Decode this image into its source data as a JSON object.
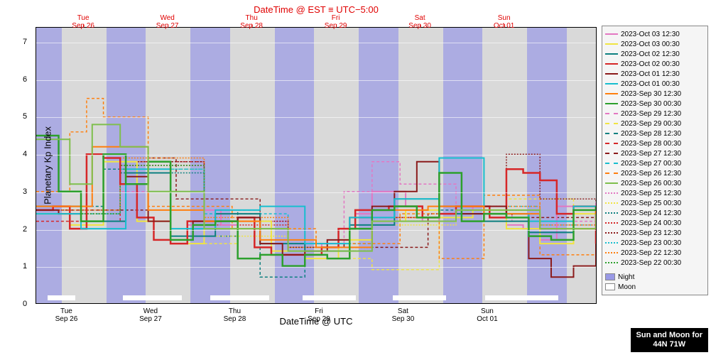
{
  "chart": {
    "type": "line-step",
    "top_title": "DateTime @ EST ≡ UTC−5:00",
    "bottom_title": "DateTime @ UTC",
    "y_label": "Planetary Kp Index",
    "ylim": [
      0,
      7.4
    ],
    "yticks": [
      0,
      1,
      2,
      3,
      4,
      5,
      6,
      7
    ],
    "plot_bg": "#d9d9d9",
    "night_color": "#9999e6",
    "moon_color": "#ffffff",
    "top_axis_color": "#e00000",
    "grid_color": "#ffffff",
    "top_ticks": [
      {
        "pos": 0.085,
        "label1": "Tue",
        "label2": "Sep 26"
      },
      {
        "pos": 0.235,
        "label1": "Wed",
        "label2": "Sep 27"
      },
      {
        "pos": 0.385,
        "label1": "Thu",
        "label2": "Sep 28"
      },
      {
        "pos": 0.535,
        "label1": "Fri",
        "label2": "Sep 29"
      },
      {
        "pos": 0.685,
        "label1": "Sat",
        "label2": "Sep 30"
      },
      {
        "pos": 0.835,
        "label1": "Sun",
        "label2": "Oct 01"
      }
    ],
    "bottom_ticks": [
      {
        "pos": 0.055,
        "label1": "Tue",
        "label2": "Sep 26"
      },
      {
        "pos": 0.205,
        "label1": "Wed",
        "label2": "Sep 27"
      },
      {
        "pos": 0.355,
        "label1": "Thu",
        "label2": "Sep 28"
      },
      {
        "pos": 0.505,
        "label1": "Fri",
        "label2": "Sep 29"
      },
      {
        "pos": 0.655,
        "label1": "Sat",
        "label2": "Sep 30"
      },
      {
        "pos": 0.805,
        "label1": "Sun",
        "label2": "Oct 01"
      }
    ],
    "night_bands": [
      {
        "start": 0.0,
        "end": 0.045
      },
      {
        "start": 0.125,
        "end": 0.195
      },
      {
        "start": 0.275,
        "end": 0.345
      },
      {
        "start": 0.425,
        "end": 0.495
      },
      {
        "start": 0.575,
        "end": 0.645
      },
      {
        "start": 0.725,
        "end": 0.795
      },
      {
        "start": 0.875,
        "end": 0.945
      }
    ],
    "moon_bars": [
      {
        "start": 0.02,
        "end": 0.07
      },
      {
        "start": 0.155,
        "end": 0.26
      },
      {
        "start": 0.31,
        "end": 0.415
      },
      {
        "start": 0.475,
        "end": 0.57
      },
      {
        "start": 0.635,
        "end": 0.73
      },
      {
        "start": 0.8,
        "end": 0.93
      }
    ],
    "tick_markers": [
      0.055,
      0.12,
      0.205,
      0.27,
      0.355,
      0.42,
      0.505,
      0.57,
      0.655,
      0.72,
      0.805,
      0.87,
      0.955
    ],
    "series": [
      {
        "label": "2023-Oct 03 12:30",
        "color": "#e377c2",
        "dash": "",
        "w": 2,
        "main": true,
        "x": [
          0.0,
          0.03,
          0.06,
          0.09,
          0.12,
          0.15,
          0.18,
          0.21,
          0.24,
          0.27,
          0.3,
          0.33,
          0.36,
          0.39,
          0.42,
          0.45,
          0.48,
          0.51,
          0.54,
          0.57,
          0.6,
          0.63,
          0.66,
          0.69,
          0.72,
          0.75,
          0.78,
          0.81,
          0.84,
          0.87,
          0.9,
          0.93,
          0.96,
          1.0
        ],
        "y": [
          2.5,
          2.6,
          2.0,
          4.0,
          3.9,
          3.2,
          2.3,
          1.7,
          1.7,
          2.1,
          2.5,
          2.1,
          2.2,
          1.5,
          1.3,
          1.3,
          1.3,
          1.6,
          2.0,
          2.4,
          3.0,
          3.0,
          2.6,
          2.2,
          2.4,
          2.6,
          2.5,
          2.3,
          2.1,
          2.0,
          1.7,
          2.6,
          2.5,
          2.7
        ]
      },
      {
        "label": "2023-Oct 03 00:30",
        "color": "#f0e442",
        "dash": "",
        "w": 2,
        "x": [
          0.0,
          0.06,
          0.12,
          0.18,
          0.24,
          0.3,
          0.36,
          0.42,
          0.48,
          0.54,
          0.6,
          0.66,
          0.72,
          0.78,
          0.84,
          0.9,
          0.96,
          1.0
        ],
        "y": [
          2.4,
          2.1,
          3.8,
          2.2,
          1.6,
          2.0,
          2.2,
          1.4,
          1.2,
          1.7,
          2.2,
          2.5,
          2.3,
          2.5,
          2.0,
          1.6,
          2.4,
          2.6
        ]
      },
      {
        "label": "2023-Oct 02 12:30",
        "color": "#0d8080",
        "dash": "",
        "w": 2,
        "x": [
          0.0,
          0.08,
          0.16,
          0.24,
          0.32,
          0.4,
          0.48,
          0.56,
          0.64,
          0.72,
          0.8,
          0.88,
          0.96,
          1.0
        ],
        "y": [
          2.6,
          2.2,
          3.5,
          1.8,
          2.4,
          1.6,
          1.4,
          2.1,
          2.8,
          2.4,
          2.2,
          1.9,
          2.5,
          2.6
        ]
      },
      {
        "label": "2023-Oct 02 00:30",
        "color": "#d62728",
        "dash": "",
        "w": 2.5,
        "main": true,
        "x": [
          0.0,
          0.03,
          0.06,
          0.09,
          0.12,
          0.15,
          0.18,
          0.21,
          0.24,
          0.27,
          0.3,
          0.33,
          0.36,
          0.39,
          0.42,
          0.45,
          0.48,
          0.51,
          0.54,
          0.57,
          0.6,
          0.63,
          0.66,
          0.69,
          0.72,
          0.75,
          0.78,
          0.81,
          0.84,
          0.87,
          0.9,
          0.93,
          0.96,
          1.0
        ],
        "y": [
          2.5,
          2.6,
          2.0,
          4.0,
          3.9,
          3.2,
          2.3,
          1.7,
          1.6,
          2.2,
          2.2,
          2.2,
          2.3,
          1.5,
          1.3,
          1.3,
          1.3,
          1.5,
          2.0,
          2.5,
          2.5,
          2.6,
          2.6,
          2.3,
          2.4,
          2.6,
          2.6,
          2.3,
          3.6,
          3.5,
          3.3,
          2.4,
          2.6,
          1.6
        ]
      },
      {
        "label": "2023-Oct 01 12:30",
        "color": "#8b1a1a",
        "dash": "",
        "w": 2,
        "main": true,
        "x": [
          0.0,
          0.04,
          0.08,
          0.12,
          0.16,
          0.2,
          0.24,
          0.28,
          0.32,
          0.36,
          0.4,
          0.44,
          0.48,
          0.52,
          0.56,
          0.6,
          0.64,
          0.68,
          0.72,
          0.76,
          0.8,
          0.84,
          0.88,
          0.92,
          0.96,
          1.0
        ],
        "y": [
          2.5,
          2.4,
          2.2,
          4.0,
          3.4,
          2.2,
          1.7,
          2.2,
          2.2,
          2.3,
          1.6,
          1.3,
          1.4,
          1.7,
          2.3,
          2.6,
          3.0,
          3.8,
          2.6,
          2.4,
          2.6,
          2.4,
          1.2,
          0.7,
          1.0,
          1.6
        ]
      },
      {
        "label": "2023-Oct 01 00:30",
        "color": "#17becf",
        "dash": "",
        "w": 2,
        "x": [
          0.0,
          0.08,
          0.16,
          0.24,
          0.32,
          0.4,
          0.48,
          0.56,
          0.64,
          0.72,
          0.8,
          0.88,
          0.96,
          1.0
        ],
        "y": [
          2.4,
          2.0,
          3.6,
          2.0,
          2.5,
          2.6,
          1.6,
          2.3,
          2.8,
          3.9,
          2.4,
          2.2,
          2.6,
          2.0
        ]
      },
      {
        "label": "2023-Sep 30 12:30",
        "color": "#ff7f0e",
        "dash": "",
        "w": 2,
        "x": [
          0.0,
          0.1,
          0.2,
          0.3,
          0.4,
          0.5,
          0.6,
          0.7,
          0.8,
          0.9,
          1.0
        ],
        "y": [
          2.6,
          4.2,
          2.5,
          2.2,
          1.7,
          1.5,
          2.5,
          2.6,
          2.4,
          2.0,
          2.5
        ]
      },
      {
        "label": "2023-Sep 30 00:30",
        "color": "#2ca02c",
        "dash": "",
        "w": 2.5,
        "main": true,
        "x": [
          0.0,
          0.04,
          0.08,
          0.12,
          0.16,
          0.2,
          0.24,
          0.28,
          0.32,
          0.36,
          0.4,
          0.44,
          0.48,
          0.52,
          0.56,
          0.6,
          0.64,
          0.68,
          0.72,
          0.76,
          0.8,
          0.84,
          0.88,
          0.92,
          0.96,
          1.0
        ],
        "y": [
          4.5,
          3.0,
          2.2,
          4.0,
          3.2,
          3.8,
          1.7,
          2.1,
          2.2,
          1.2,
          1.3,
          1.0,
          1.3,
          1.2,
          2.0,
          2.5,
          2.6,
          2.3,
          3.5,
          2.2,
          2.4,
          2.3,
          1.8,
          1.7,
          2.5,
          2.6
        ]
      },
      {
        "label": "2023-Sep 29 12:30",
        "color": "#e377c2",
        "dash": "4,3",
        "w": 1.5,
        "x": [
          0.0,
          0.15,
          0.3,
          0.45,
          0.55,
          0.6,
          0.65,
          0.75,
          0.85,
          1.0
        ],
        "y": [
          2.5,
          3.0,
          2.2,
          1.5,
          3.0,
          3.8,
          3.2,
          2.4,
          2.2,
          2.4
        ]
      },
      {
        "label": "2023-Sep 29 00:30",
        "color": "#f0e442",
        "dash": "4,3",
        "w": 1.5,
        "x": [
          0.0,
          0.12,
          0.24,
          0.36,
          0.48,
          0.6,
          0.72,
          0.84,
          0.96,
          1.0
        ],
        "y": [
          2.4,
          3.8,
          1.6,
          2.0,
          1.2,
          0.9,
          2.4,
          2.8,
          2.5,
          2.5
        ]
      },
      {
        "label": "2023-Sep 28 12:30",
        "color": "#0d8080",
        "dash": "4,3",
        "w": 1.5,
        "x": [
          0.0,
          0.12,
          0.24,
          0.36,
          0.4,
          0.48,
          0.6,
          0.72,
          0.84,
          1.0
        ],
        "y": [
          2.6,
          3.6,
          1.8,
          2.5,
          0.7,
          1.4,
          2.2,
          2.5,
          2.0,
          2.5
        ]
      },
      {
        "label": "2023-Sep 28 00:30",
        "color": "#d62728",
        "dash": "4,3",
        "w": 1.5,
        "x": [
          0.0,
          0.15,
          0.3,
          0.45,
          0.6,
          0.75,
          0.9,
          1.0
        ],
        "y": [
          2.2,
          3.8,
          2.0,
          1.4,
          2.3,
          2.5,
          2.0,
          2.4
        ]
      },
      {
        "label": "2023-Sep 27 12:30",
        "color": "#8b1a1a",
        "dash": "4,3",
        "w": 1.5,
        "x": [
          0.0,
          0.2,
          0.25,
          0.3,
          0.4,
          0.55,
          0.7,
          0.85,
          1.0
        ],
        "y": [
          2.5,
          3.9,
          2.8,
          2.8,
          1.6,
          1.5,
          2.4,
          2.3,
          2.6
        ]
      },
      {
        "label": "2023-Sep 27 00:30",
        "color": "#17becf",
        "dash": "4,3",
        "w": 1.5,
        "x": [
          0.0,
          0.15,
          0.3,
          0.45,
          0.6,
          0.75,
          0.9,
          1.0
        ],
        "y": [
          2.4,
          3.6,
          2.4,
          1.6,
          2.2,
          2.6,
          2.1,
          2.5
        ]
      },
      {
        "label": "2023-Sep 26 12:30",
        "color": "#ff7f0e",
        "dash": "4,3",
        "w": 1.5,
        "x": [
          0.0,
          0.06,
          0.09,
          0.12,
          0.2,
          0.35,
          0.5,
          0.65,
          0.72,
          0.8,
          0.9,
          1.0
        ],
        "y": [
          3.0,
          4.6,
          5.5,
          5.0,
          2.6,
          2.0,
          1.6,
          2.4,
          1.2,
          2.9,
          1.3,
          2.3
        ]
      },
      {
        "label": "2023-Sep 26 00:30",
        "color": "#7fbf4d",
        "dash": "",
        "w": 2,
        "x": [
          0.0,
          0.06,
          0.1,
          0.15,
          0.2,
          0.3,
          0.45,
          0.6,
          0.75,
          0.9,
          1.0
        ],
        "y": [
          4.4,
          3.2,
          4.8,
          4.2,
          3.0,
          2.0,
          1.4,
          2.2,
          2.5,
          2.0,
          2.4
        ]
      },
      {
        "label": "2023-Sep 25 12:30",
        "color": "#e377c2",
        "dash": "2,2",
        "w": 1.5,
        "x": [
          0.0,
          0.15,
          0.3,
          0.45,
          0.6,
          0.75,
          0.9,
          1.0
        ],
        "y": [
          2.5,
          3.8,
          2.2,
          1.5,
          2.3,
          2.4,
          2.1,
          2.5
        ]
      },
      {
        "label": "2023-Sep 25 00:30",
        "color": "#f0e442",
        "dash": "2,2",
        "w": 1.5,
        "x": [
          0.0,
          0.15,
          0.3,
          0.45,
          0.6,
          0.75,
          0.9,
          1.0
        ],
        "y": [
          2.4,
          3.6,
          1.8,
          1.4,
          2.1,
          2.5,
          2.0,
          2.4
        ]
      },
      {
        "label": "2023-Sep 24 12:30",
        "color": "#0d8080",
        "dash": "2,2",
        "w": 1.5,
        "x": [
          0.0,
          0.15,
          0.3,
          0.45,
          0.6,
          0.75,
          0.9,
          1.0
        ],
        "y": [
          2.5,
          3.5,
          2.0,
          1.5,
          2.2,
          2.4,
          2.0,
          2.5
        ]
      },
      {
        "label": "2023-Sep 24 00:30",
        "color": "#d62728",
        "dash": "2,2",
        "w": 1.5,
        "x": [
          0.0,
          0.15,
          0.3,
          0.45,
          0.6,
          0.75,
          0.9,
          1.0
        ],
        "y": [
          2.4,
          3.7,
          2.1,
          1.4,
          2.2,
          2.5,
          2.0,
          2.4
        ]
      },
      {
        "label": "2023-Sep 23 12:30",
        "color": "#8b1a1a",
        "dash": "2,2",
        "w": 1.5,
        "x": [
          0.0,
          0.15,
          0.3,
          0.45,
          0.6,
          0.75,
          0.84,
          0.9,
          1.0
        ],
        "y": [
          2.5,
          3.8,
          2.2,
          1.5,
          2.3,
          2.6,
          4.0,
          2.8,
          2.6
        ]
      },
      {
        "label": "2023-Sep 23 00:30",
        "color": "#17becf",
        "dash": "2,2",
        "w": 1.5,
        "x": [
          0.0,
          0.15,
          0.3,
          0.45,
          0.6,
          0.75,
          0.9,
          1.0
        ],
        "y": [
          2.4,
          3.6,
          2.0,
          1.4,
          2.2,
          2.5,
          2.0,
          2.4
        ]
      },
      {
        "label": "2023-Sep 22 12:30",
        "color": "#ff7f0e",
        "dash": "2,2",
        "w": 1.5,
        "x": [
          0.0,
          0.15,
          0.3,
          0.45,
          0.6,
          0.75,
          0.9,
          1.0
        ],
        "y": [
          2.5,
          3.9,
          2.3,
          1.5,
          2.3,
          2.6,
          2.1,
          2.5
        ]
      },
      {
        "label": "2023-Sep 22 00:30",
        "color": "#2ca02c",
        "dash": "2,2",
        "w": 1.5,
        "x": [
          0.0,
          0.15,
          0.3,
          0.45,
          0.6,
          0.75,
          0.9,
          1.0
        ],
        "y": [
          2.4,
          3.7,
          2.0,
          1.4,
          2.2,
          2.5,
          2.0,
          2.4
        ]
      }
    ],
    "legend_extra": [
      {
        "label": "Night",
        "type": "patch",
        "color": "#9999e6"
      },
      {
        "label": "Moon",
        "type": "patch",
        "color": "#ffffff"
      }
    ]
  },
  "corner": {
    "line1": "Sun and Moon for",
    "line2": "44N 71W"
  }
}
